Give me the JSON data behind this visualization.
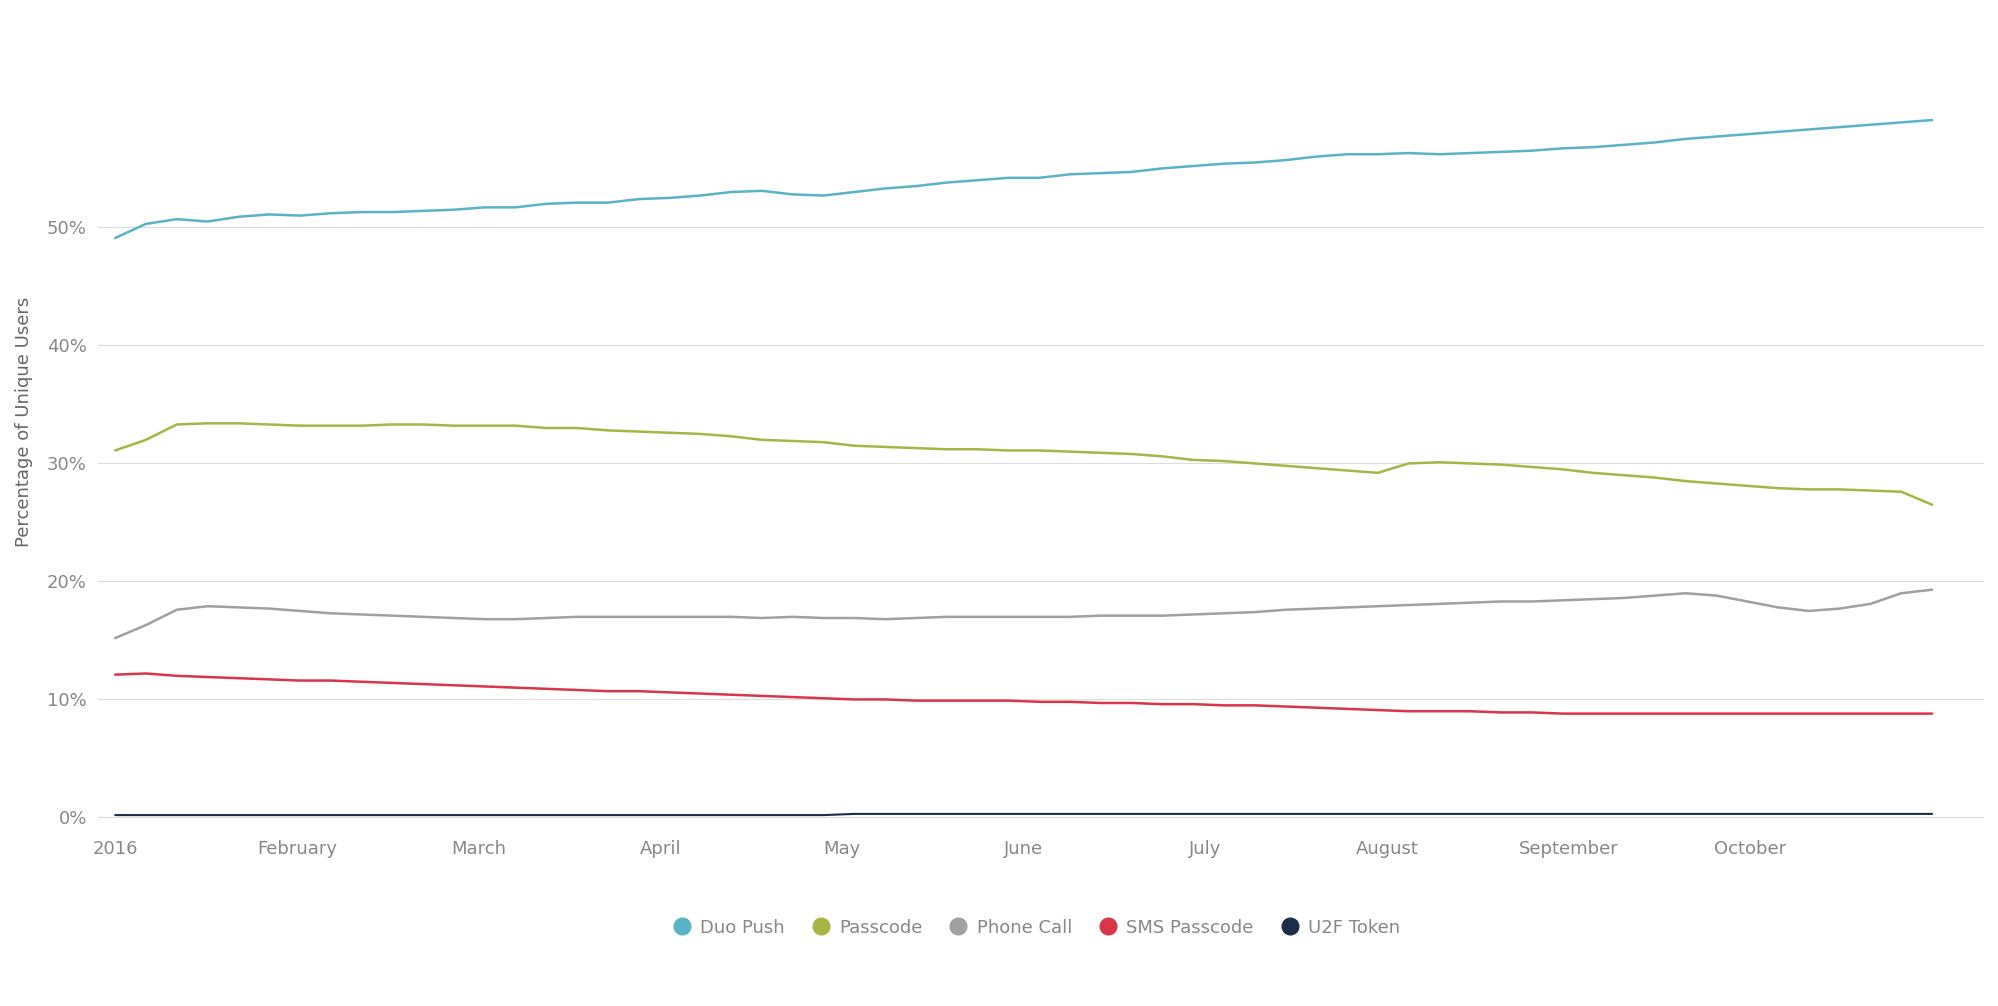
{
  "ylabel": "Percentage of Unique Users",
  "x_labels": [
    "2016",
    "February",
    "March",
    "April",
    "May",
    "June",
    "July",
    "August",
    "September",
    "October"
  ],
  "ylim": [
    -0.01,
    0.68
  ],
  "yticks": [
    0.0,
    0.1,
    0.2,
    0.3,
    0.4,
    0.5
  ],
  "ytick_labels": [
    "0%",
    "10%",
    "20%",
    "30%",
    "40%",
    "50%"
  ],
  "series": {
    "Duo Push": {
      "color": "#5ab4c5",
      "linewidth": 1.8,
      "values": [
        0.491,
        0.503,
        0.507,
        0.505,
        0.509,
        0.511,
        0.51,
        0.512,
        0.513,
        0.513,
        0.514,
        0.515,
        0.517,
        0.517,
        0.52,
        0.521,
        0.521,
        0.524,
        0.525,
        0.527,
        0.53,
        0.531,
        0.528,
        0.527,
        0.53,
        0.533,
        0.535,
        0.538,
        0.54,
        0.542,
        0.542,
        0.545,
        0.546,
        0.547,
        0.55,
        0.552,
        0.554,
        0.555,
        0.557,
        0.56,
        0.562,
        0.562,
        0.563,
        0.562,
        0.563,
        0.564,
        0.565,
        0.567,
        0.568,
        0.57,
        0.572,
        0.575,
        0.577,
        0.579,
        0.581,
        0.583,
        0.585,
        0.587,
        0.589,
        0.591
      ]
    },
    "Passcode": {
      "color": "#a8b545",
      "linewidth": 1.8,
      "values": [
        0.311,
        0.32,
        0.333,
        0.334,
        0.334,
        0.333,
        0.332,
        0.332,
        0.332,
        0.333,
        0.333,
        0.332,
        0.332,
        0.332,
        0.33,
        0.33,
        0.328,
        0.327,
        0.326,
        0.325,
        0.323,
        0.32,
        0.319,
        0.318,
        0.315,
        0.314,
        0.313,
        0.312,
        0.312,
        0.311,
        0.311,
        0.31,
        0.309,
        0.308,
        0.306,
        0.303,
        0.302,
        0.3,
        0.298,
        0.296,
        0.294,
        0.292,
        0.3,
        0.301,
        0.3,
        0.299,
        0.297,
        0.295,
        0.292,
        0.29,
        0.288,
        0.285,
        0.283,
        0.281,
        0.279,
        0.278,
        0.278,
        0.277,
        0.276,
        0.265
      ]
    },
    "Phone Call": {
      "color": "#a0a0a0",
      "linewidth": 1.8,
      "values": [
        0.152,
        0.163,
        0.176,
        0.179,
        0.178,
        0.177,
        0.175,
        0.173,
        0.172,
        0.171,
        0.17,
        0.169,
        0.168,
        0.168,
        0.169,
        0.17,
        0.17,
        0.17,
        0.17,
        0.17,
        0.17,
        0.169,
        0.17,
        0.169,
        0.169,
        0.168,
        0.169,
        0.17,
        0.17,
        0.17,
        0.17,
        0.17,
        0.171,
        0.171,
        0.171,
        0.172,
        0.173,
        0.174,
        0.176,
        0.177,
        0.178,
        0.179,
        0.18,
        0.181,
        0.182,
        0.183,
        0.183,
        0.184,
        0.185,
        0.186,
        0.188,
        0.19,
        0.188,
        0.183,
        0.178,
        0.175,
        0.177,
        0.181,
        0.19,
        0.193
      ]
    },
    "SMS Passcode": {
      "color": "#d93649",
      "linewidth": 1.8,
      "values": [
        0.121,
        0.122,
        0.12,
        0.119,
        0.118,
        0.117,
        0.116,
        0.116,
        0.115,
        0.114,
        0.113,
        0.112,
        0.111,
        0.11,
        0.109,
        0.108,
        0.107,
        0.107,
        0.106,
        0.105,
        0.104,
        0.103,
        0.102,
        0.101,
        0.1,
        0.1,
        0.099,
        0.099,
        0.099,
        0.099,
        0.098,
        0.098,
        0.097,
        0.097,
        0.096,
        0.096,
        0.095,
        0.095,
        0.094,
        0.093,
        0.092,
        0.091,
        0.09,
        0.09,
        0.09,
        0.089,
        0.089,
        0.088,
        0.088,
        0.088,
        0.088,
        0.088,
        0.088,
        0.088,
        0.088,
        0.088,
        0.088,
        0.088,
        0.088,
        0.088
      ]
    },
    "U2F Token": {
      "color": "#1a2e4a",
      "linewidth": 1.5,
      "values": [
        0.002,
        0.002,
        0.002,
        0.002,
        0.002,
        0.002,
        0.002,
        0.002,
        0.002,
        0.002,
        0.002,
        0.002,
        0.002,
        0.002,
        0.002,
        0.002,
        0.002,
        0.002,
        0.002,
        0.002,
        0.002,
        0.002,
        0.002,
        0.002,
        0.003,
        0.003,
        0.003,
        0.003,
        0.003,
        0.003,
        0.003,
        0.003,
        0.003,
        0.003,
        0.003,
        0.003,
        0.003,
        0.003,
        0.003,
        0.003,
        0.003,
        0.003,
        0.003,
        0.003,
        0.003,
        0.003,
        0.003,
        0.003,
        0.003,
        0.003,
        0.003,
        0.003,
        0.003,
        0.003,
        0.003,
        0.003,
        0.003,
        0.003,
        0.003,
        0.003
      ]
    }
  },
  "background_color": "#ffffff",
  "grid_color": "#dddddd",
  "tick_label_color": "#888888",
  "axis_label_color": "#666666"
}
